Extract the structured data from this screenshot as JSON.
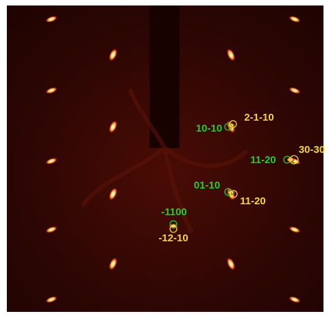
{
  "green_labels": [
    "10-10",
    "11-20",
    "01-10",
    "-1100"
  ],
  "yellow_labels": [
    "2-1-10",
    "30-30",
    "11-20",
    "-12-10"
  ]
}
